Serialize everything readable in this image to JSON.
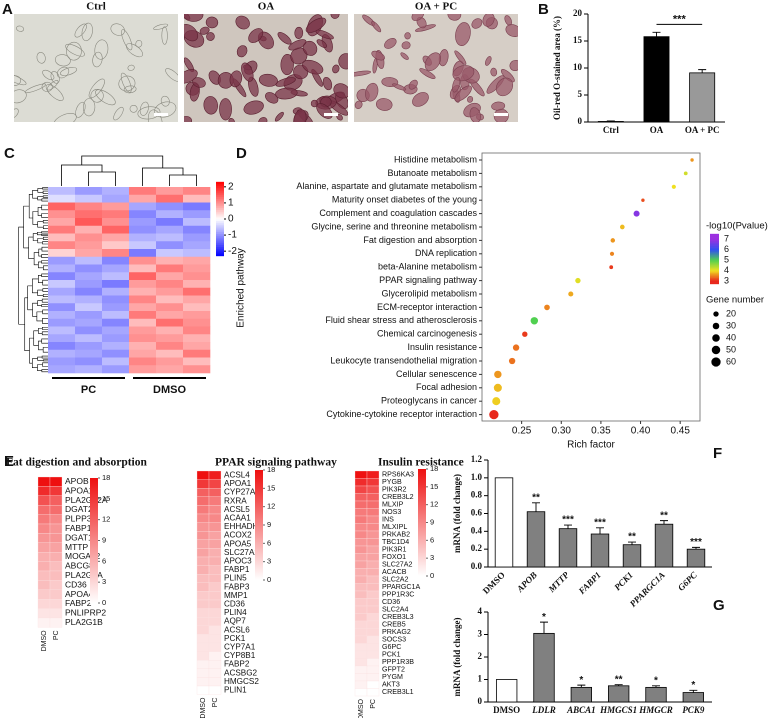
{
  "panel_a": {
    "letter": "A",
    "images": [
      "Ctrl",
      "OA",
      "OA + PC"
    ]
  },
  "chart_data": [
    {
      "panel": "B",
      "type": "bar",
      "ylabel": "Oil-red O-stained area (%)",
      "categories": [
        "Ctrl",
        "OA",
        "OA + PC"
      ],
      "values": [
        0.1,
        15.8,
        9.1
      ],
      "errors": [
        0.1,
        0.8,
        0.6
      ],
      "colors": [
        "#ffffff",
        "#000000",
        "#999999"
      ],
      "ylim": [
        0,
        20
      ],
      "yticks": [
        0,
        5,
        10,
        15,
        20
      ],
      "significance": "***"
    },
    {
      "panel": "C",
      "type": "heatmap",
      "group_labels": [
        "PC",
        "DMSO"
      ],
      "clim": [
        -2.3,
        2.3
      ],
      "cticks": [
        2,
        1,
        0,
        -1,
        -2
      ],
      "colors": [
        "#0000ff",
        "#ffffff",
        "#ff0000"
      ],
      "matrix": [
        [
          -0.6,
          -0.9,
          -0.7,
          1.2,
          0.9,
          1.1
        ],
        [
          -0.3,
          -0.5,
          -0.8,
          0.8,
          1.3,
          0.6
        ],
        [
          1.4,
          1.1,
          0.9,
          -0.8,
          -1.0,
          -1.2
        ],
        [
          1.0,
          1.3,
          1.2,
          -1.1,
          -0.7,
          -0.9
        ],
        [
          0.8,
          1.5,
          1.0,
          -0.9,
          -1.2,
          -0.6
        ],
        [
          1.2,
          0.7,
          1.4,
          -1.0,
          -0.8,
          -1.1
        ],
        [
          0.6,
          1.0,
          0.8,
          -0.7,
          -0.6,
          -0.9
        ],
        [
          1.1,
          0.9,
          0.5,
          -0.5,
          -1.0,
          -0.8
        ],
        [
          0.4,
          0.8,
          1.1,
          -1.2,
          -0.5,
          -0.6
        ],
        [
          -0.9,
          -0.6,
          -1.1,
          1.0,
          0.7,
          0.8
        ],
        [
          -0.7,
          -1.0,
          -0.8,
          0.6,
          1.2,
          0.9
        ],
        [
          -1.1,
          -0.8,
          -0.6,
          1.4,
          0.8,
          1.0
        ],
        [
          -0.5,
          -0.9,
          -1.2,
          0.9,
          1.1,
          0.7
        ],
        [
          -0.8,
          -1.1,
          -0.7,
          0.7,
          0.9,
          1.3
        ],
        [
          -0.6,
          -0.7,
          -1.0,
          1.1,
          0.6,
          0.8
        ],
        [
          -1.0,
          -0.5,
          -0.9,
          0.8,
          1.0,
          0.6
        ],
        [
          -0.7,
          -0.9,
          -0.6,
          1.2,
          0.8,
          0.9
        ],
        [
          -0.9,
          -0.8,
          -1.1,
          0.6,
          1.3,
          1.0
        ],
        [
          -0.6,
          -1.0,
          -0.8,
          0.9,
          0.7,
          1.1
        ],
        [
          -0.8,
          -0.6,
          -0.9,
          1.0,
          0.9,
          0.7
        ],
        [
          -1.1,
          -0.9,
          -0.7,
          0.7,
          1.1,
          0.8
        ],
        [
          -0.7,
          -0.8,
          -1.0,
          0.8,
          0.6,
          1.2
        ],
        [
          -0.9,
          -1.0,
          -0.6,
          1.1,
          0.9,
          0.6
        ],
        [
          -0.8,
          -0.7,
          -0.9,
          0.9,
          0.8,
          1.0
        ]
      ]
    },
    {
      "panel": "D",
      "type": "bubble",
      "xlabel": "Rich factor",
      "ylabel": "Enriched pathway",
      "categories": [
        "Histidine metabolism",
        "Butanoate metabolism",
        "Alanine, aspartate and glutamate metabolism",
        "Maturity onset diabetes of the young",
        "Complement and coagulation cascades",
        "Glycine, serine and threonine metabolism",
        "Fat digestion and absorption",
        "DNA replication",
        "beta-Alanine metabolism",
        "PPAR signaling pathway",
        "Glycerolipid metabolism",
        "ECM-receptor interaction",
        "Fluid shear stress and atherosclerosis",
        "Chemical carcinogenesis",
        "Insulin resistance",
        "Leukocyte transendothelial migration",
        "Cellular senescence",
        "Focal adhesion",
        "Proteoglycans in cancer",
        "Cytokine-cytokine receptor interaction"
      ],
      "x": [
        0.465,
        0.457,
        0.442,
        0.403,
        0.395,
        0.377,
        0.365,
        0.364,
        0.363,
        0.321,
        0.312,
        0.282,
        0.266,
        0.254,
        0.243,
        0.238,
        0.22,
        0.22,
        0.218,
        0.215
      ],
      "pvalue": [
        3.6,
        4.2,
        4.0,
        3.2,
        6.8,
        3.8,
        3.6,
        3.5,
        3.1,
        4.1,
        3.7,
        3.5,
        5.0,
        3.1,
        3.4,
        3.4,
        3.6,
        3.8,
        3.9,
        3.0
      ],
      "size": [
        8,
        10,
        12,
        8,
        25,
        15,
        14,
        12,
        10,
        20,
        18,
        22,
        38,
        20,
        28,
        28,
        38,
        45,
        45,
        60
      ],
      "xlim": [
        0.2,
        0.475
      ],
      "xticks": [
        0.25,
        {
          "value": 0.3,
          "label": "0.30"
        },
        0.35,
        {
          "value": 0.4,
          "label": "0.40"
        },
        0.45
      ],
      "color_legend_title": "-log10(Pvalue)",
      "clim": [
        2.7,
        7.5
      ],
      "color_ticks": [
        7,
        6,
        5,
        4,
        3
      ],
      "colors": [
        "#9b30e0",
        "#3050f0",
        "#50d050",
        "#f0e020",
        "#e8281c"
      ],
      "size_legend_title": "Gene number",
      "size_ticks": [
        20,
        30,
        40,
        50,
        60
      ]
    },
    {
      "panel": "E",
      "type": "heatmap",
      "title": "Fat digestion and absorption",
      "columns": [
        "DMSO",
        "PC"
      ],
      "rows": [
        "APOB",
        "APOA1",
        "PLA2G12A",
        "DGAT2",
        "PLPP3",
        "FABP1",
        "DGAT1",
        "MTTP",
        "MOGAT2",
        "ABCG8",
        "PLA2G2A",
        "CD36",
        "APOA4",
        "FABP2",
        "PNLIPRP2",
        "PLA2G1B"
      ],
      "values": [
        [
          18,
          18
        ],
        [
          16,
          15
        ],
        [
          13,
          12
        ],
        [
          11,
          11
        ],
        [
          10,
          9
        ],
        [
          9,
          8
        ],
        [
          8,
          8
        ],
        [
          7,
          7
        ],
        [
          6,
          6
        ],
        [
          6,
          5
        ],
        [
          5,
          5
        ],
        [
          5,
          4
        ],
        [
          4,
          4
        ],
        [
          3,
          3
        ],
        [
          2,
          2
        ],
        [
          1,
          1
        ]
      ],
      "clim": [
        0,
        18
      ],
      "cticks": [
        18,
        15,
        12,
        9,
        6,
        3,
        0
      ],
      "colors": [
        "#ffffff",
        "#ee1010"
      ]
    },
    {
      "type": "heatmap",
      "title": "PPAR signaling pathway",
      "columns": [
        "DMSO",
        "PC"
      ],
      "rows": [
        "ACSL4",
        "APOA1",
        "CYP27A1",
        "RXRA",
        "ACSL5",
        "ACAA1",
        "EHHADH",
        "ACOX2",
        "APOA5",
        "SLC27A2",
        "APOC3",
        "FABP1",
        "PLIN5",
        "FABP3",
        "MMP1",
        "CD36",
        "PLIN4",
        "AQP7",
        "ACSL6",
        "PCK1",
        "CYP7A1",
        "CYP8B1",
        "FABP2",
        "ACSBG2",
        "HMGCS2",
        "PLIN1"
      ],
      "values": [
        [
          18,
          17
        ],
        [
          15,
          14
        ],
        [
          12,
          12
        ],
        [
          11,
          10
        ],
        [
          10,
          9
        ],
        [
          9,
          9
        ],
        [
          8,
          8
        ],
        [
          8,
          7
        ],
        [
          7,
          7
        ],
        [
          7,
          6
        ],
        [
          6,
          6
        ],
        [
          6,
          5
        ],
        [
          5,
          5
        ],
        [
          5,
          4
        ],
        [
          4,
          4
        ],
        [
          4,
          4
        ],
        [
          3,
          3
        ],
        [
          3,
          3
        ],
        [
          3,
          2
        ],
        [
          2,
          2
        ],
        [
          2,
          2
        ],
        [
          2,
          1
        ],
        [
          1,
          1
        ],
        [
          1,
          1
        ],
        [
          1,
          1
        ],
        [
          0,
          0
        ]
      ],
      "clim": [
        0,
        18
      ],
      "cticks": [
        18,
        15,
        12,
        9,
        6,
        3,
        0
      ],
      "colors": [
        "#ffffff",
        "#ee1010"
      ]
    },
    {
      "type": "heatmap",
      "title": "Insulin resistance",
      "columns": [
        "DMSO",
        "PC"
      ],
      "rows": [
        "RPS6KA3",
        "PYGB",
        "PIK3R2",
        "CREB3L2",
        "MLXIP",
        "NOS3",
        "INS",
        "MLXIPL",
        "PRKAB2",
        "TBC1D4",
        "PIK3R1",
        "FOXO1",
        "SLC27A2",
        "ACACB",
        "SLC2A2",
        "PPARGC1A",
        "PPP1R3C",
        "CD36",
        "SLC2A4",
        "CREB3L3",
        "CREB5",
        "PRKAG2",
        "SOCS3",
        "G6PC",
        "PCK1",
        "PPP1R3B",
        "GFPT2",
        "PYGM",
        "AKT3",
        "CREB3L1"
      ],
      "values": [
        [
          18,
          17
        ],
        [
          16,
          15
        ],
        [
          14,
          13
        ],
        [
          12,
          12
        ],
        [
          11,
          11
        ],
        [
          10,
          10
        ],
        [
          10,
          9
        ],
        [
          9,
          9
        ],
        [
          9,
          8
        ],
        [
          8,
          8
        ],
        [
          8,
          7
        ],
        [
          7,
          7
        ],
        [
          7,
          6
        ],
        [
          6,
          6
        ],
        [
          6,
          5
        ],
        [
          5,
          5
        ],
        [
          5,
          4
        ],
        [
          4,
          4
        ],
        [
          4,
          4
        ],
        [
          4,
          3
        ],
        [
          3,
          3
        ],
        [
          3,
          3
        ],
        [
          3,
          2
        ],
        [
          2,
          2
        ],
        [
          2,
          2
        ],
        [
          2,
          1
        ],
        [
          1,
          1
        ],
        [
          1,
          1
        ],
        [
          1,
          0
        ],
        [
          0,
          0
        ]
      ],
      "clim": [
        0,
        18
      ],
      "cticks": [
        18,
        15,
        12,
        9,
        6,
        3,
        0
      ],
      "colors": [
        "#ffffff",
        "#ee1010"
      ]
    },
    {
      "panel": "F",
      "type": "bar",
      "ylabel": "mRNA (fold change)",
      "categories": [
        "DMSO",
        "APOB",
        "MTTP",
        "FABP1",
        "PCK1",
        "PPARGC1A",
        "G6PC"
      ],
      "italic": [
        false,
        true,
        true,
        true,
        true,
        true,
        true
      ],
      "values": [
        1,
        0.62,
        0.43,
        0.37,
        0.25,
        0.48,
        0.2
      ],
      "errors": [
        null,
        0.1,
        0.04,
        0.07,
        0.03,
        0.04,
        0.02
      ],
      "significance": [
        null,
        "**",
        "***",
        "***",
        "**",
        "**",
        "***"
      ],
      "colors": [
        "#ffffff",
        "#808080",
        "#808080",
        "#808080",
        "#808080",
        "#808080",
        "#808080"
      ],
      "ylim": [
        0,
        1.2
      ],
      "yticks": [
        {
          "value": 0,
          "label": "0.0"
        },
        0.2,
        0.4,
        0.6,
        0.8,
        {
          "value": 1,
          "label": "1.0"
        },
        1.2
      ]
    },
    {
      "panel": "G",
      "type": "bar",
      "ylabel": "mRNA (fold change)",
      "categories": [
        "DMSO",
        "LDLR",
        "ABCA1",
        "HMGCS1",
        "HMGCR",
        "PCK9"
      ],
      "italic": [
        false,
        true,
        true,
        true,
        true,
        true
      ],
      "values": [
        1,
        3.05,
        0.65,
        0.72,
        0.65,
        0.42
      ],
      "errors": [
        null,
        0.5,
        0.1,
        0.05,
        0.07,
        0.1
      ],
      "significance": [
        null,
        "*",
        "*",
        "**",
        "*",
        "*"
      ],
      "colors": [
        "#ffffff",
        "#808080",
        "#808080",
        "#808080",
        "#808080",
        "#808080"
      ],
      "ylim": [
        0,
        4
      ],
      "yticks": [
        0,
        1,
        2,
        3,
        4
      ]
    }
  ]
}
